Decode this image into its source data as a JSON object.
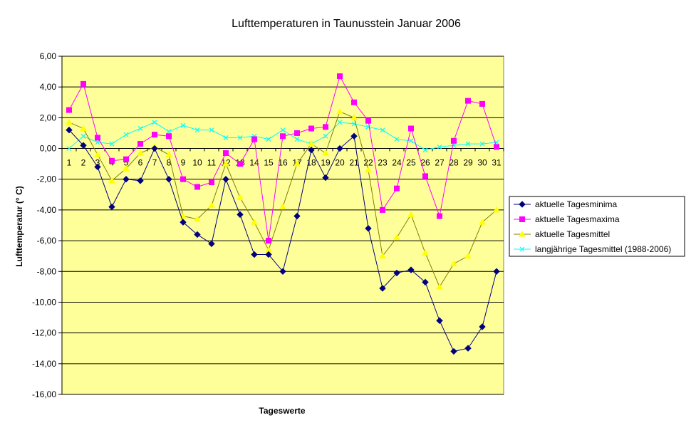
{
  "chart_data": {
    "type": "line",
    "title": "Lufttemperaturen in Taunusstein  Januar  2006",
    "xlabel": "Tageswerte",
    "ylabel": "Lufttemperatur (° C)",
    "categories": [
      "1",
      "2",
      "3",
      "4",
      "5",
      "6",
      "7",
      "8",
      "9",
      "10",
      "11",
      "12",
      "13",
      "14",
      "15",
      "16",
      "17",
      "18",
      "19",
      "20",
      "21",
      "22",
      "23",
      "24",
      "25",
      "26",
      "27",
      "28",
      "29",
      "30",
      "31"
    ],
    "ylim": [
      -16,
      6
    ],
    "yticks": [
      6,
      4,
      2,
      0,
      -2,
      -4,
      -6,
      -8,
      -10,
      -12,
      -14,
      -16
    ],
    "ytick_labels": [
      "6,00",
      "4,00",
      "2,00",
      "0,00",
      "-2,00",
      "-4,00",
      "-6,00",
      "-8,00",
      "-10,00",
      "-12,00",
      "-14,00",
      "-16,00"
    ],
    "grid": "horizontal",
    "plot_background": "#ffff99",
    "legend_position": "right",
    "series": [
      {
        "name": "aktuelle Tagesminima",
        "color": "#000080",
        "marker": "diamond",
        "values": [
          1.2,
          0.2,
          -1.2,
          -3.8,
          -2.0,
          -2.1,
          0.0,
          -2.0,
          -4.8,
          -5.6,
          -6.2,
          -2.0,
          -4.3,
          -6.9,
          -6.9,
          -8.0,
          -4.4,
          -0.1,
          -1.9,
          0.0,
          0.8,
          -5.2,
          -9.1,
          -8.1,
          -7.9,
          -8.7,
          -11.2,
          -13.2,
          -13.0,
          -11.6,
          -8.0
        ]
      },
      {
        "name": "aktuelle Tagesmaxima",
        "color": "#ff00ff",
        "marker": "square",
        "values": [
          2.5,
          4.2,
          0.7,
          -0.8,
          -0.7,
          0.3,
          0.9,
          0.8,
          -2.0,
          -2.5,
          -2.2,
          -0.3,
          -1.0,
          0.6,
          -6.0,
          0.8,
          1.0,
          1.3,
          1.4,
          4.7,
          3.0,
          1.8,
          -4.0,
          -2.6,
          1.3,
          -1.8,
          -4.4,
          0.5,
          3.1,
          2.9,
          0.1
        ]
      },
      {
        "name": "aktuelle Tagesmittel",
        "color": "#ffff00",
        "line_color": "#808000",
        "marker": "triangle",
        "values": [
          1.7,
          1.3,
          -0.4,
          -2.1,
          -1.3,
          -0.3,
          0.1,
          -0.4,
          -4.4,
          -4.6,
          -3.7,
          -1.0,
          -3.2,
          -4.8,
          -6.6,
          -3.8,
          -1.0,
          0.3,
          -0.3,
          2.4,
          2.0,
          -1.4,
          -7.0,
          -5.8,
          -4.3,
          -6.8,
          -9.0,
          -7.5,
          -7.0,
          -4.8,
          -4.0
        ]
      },
      {
        "name": "langjährige Tagesmittel (1988-2006)",
        "color": "#00ffff",
        "marker": "x",
        "values": [
          0.0,
          0.8,
          0.4,
          0.3,
          0.9,
          1.3,
          1.7,
          1.1,
          1.5,
          1.2,
          1.2,
          0.7,
          0.7,
          0.8,
          0.6,
          1.2,
          0.6,
          0.3,
          0.8,
          1.7,
          1.6,
          1.4,
          1.2,
          0.6,
          0.5,
          -0.1,
          0.1,
          0.2,
          0.3,
          0.3,
          0.4
        ]
      }
    ]
  }
}
